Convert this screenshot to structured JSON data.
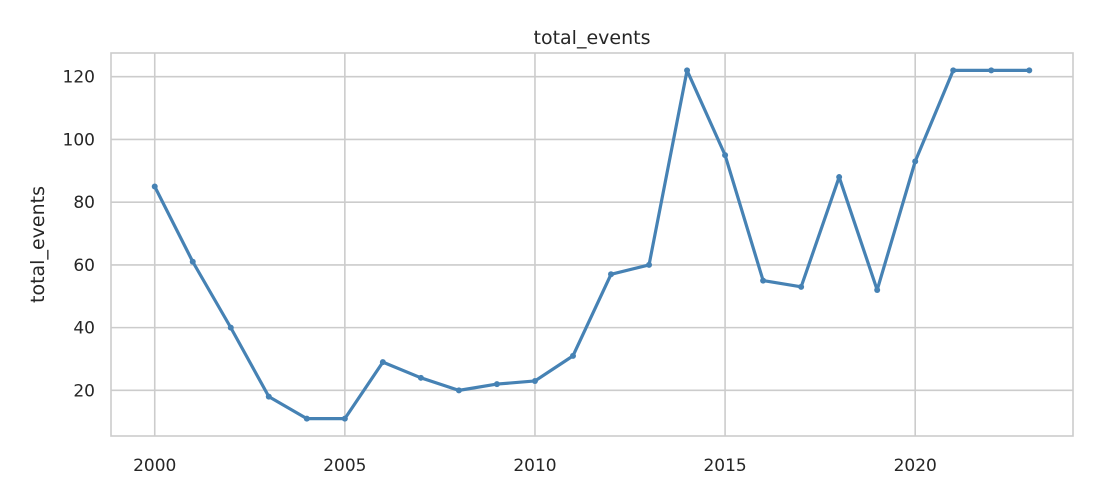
{
  "chart_data": {
    "type": "line",
    "title": "total_events",
    "xlabel": "",
    "ylabel": "total_events",
    "x": [
      2000,
      2001,
      2002,
      2003,
      2004,
      2005,
      2006,
      2007,
      2008,
      2009,
      2010,
      2011,
      2012,
      2013,
      2014,
      2015,
      2016,
      2017,
      2018,
      2019,
      2020,
      2021,
      2022,
      2023
    ],
    "series": [
      {
        "values": [
          85,
          61,
          40,
          18,
          11,
          11,
          29,
          24,
          20,
          22,
          23,
          31,
          57,
          60,
          122,
          95,
          55,
          53,
          88,
          52,
          93,
          122,
          122,
          122
        ]
      }
    ],
    "xlim": [
      1998.85,
      2024.15
    ],
    "ylim": [
      5.45,
      127.55
    ],
    "x_ticks": [
      2000,
      2005,
      2010,
      2015,
      2020
    ],
    "y_ticks": [
      20,
      40,
      60,
      80,
      100,
      120
    ],
    "grid": true,
    "legend": "none",
    "colors": {
      "line": "#4682b4",
      "grid": "#cccccc",
      "spine": "#cccccc",
      "text": "#262626",
      "background": "#ffffff"
    }
  }
}
